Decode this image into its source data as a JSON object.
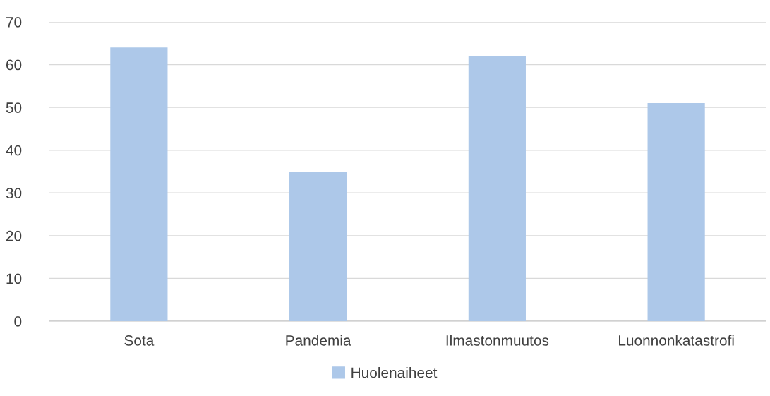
{
  "chart_data": {
    "type": "bar",
    "categories": [
      "Sota",
      "Pandemia",
      "Ilmastonmuutos",
      "Luonnonkatastrofi"
    ],
    "series": [
      {
        "name": "Huolenaiheet",
        "color": "#adc8e9",
        "values": [
          64,
          35,
          62,
          51
        ]
      }
    ],
    "ylim": [
      0,
      70
    ],
    "yticks": [
      0,
      10,
      20,
      30,
      40,
      50,
      60,
      70
    ],
    "grid": "y",
    "legend": "bottom"
  }
}
